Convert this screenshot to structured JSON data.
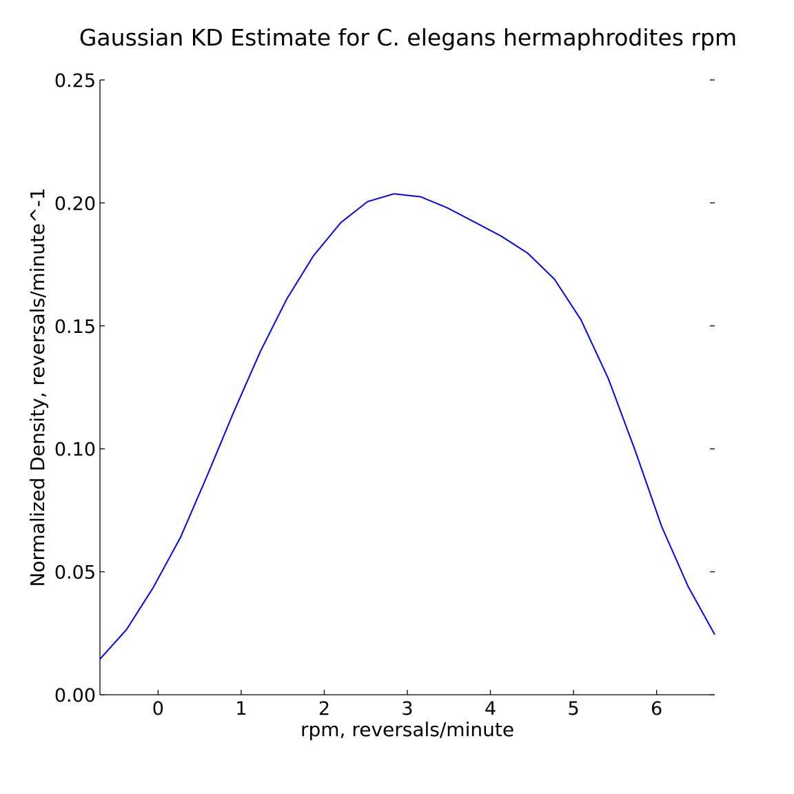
{
  "chart_data": {
    "type": "line",
    "title": "Gaussian KD Estimate for C. elegans hermaphrodites rpm",
    "xlabel": "rpm, reversals/minute",
    "ylabel": "Normalized Density, reversals/minute^-1",
    "xlim": [
      -0.7,
      6.7
    ],
    "ylim": [
      0.0,
      0.25
    ],
    "x_ticks": [
      0,
      1,
      2,
      3,
      4,
      5,
      6
    ],
    "x_tick_labels": [
      "0",
      "1",
      "2",
      "3",
      "4",
      "5",
      "6"
    ],
    "y_ticks": [
      0.0,
      0.05,
      0.1,
      0.15,
      0.2,
      0.25
    ],
    "y_tick_labels": [
      "0.00",
      "0.05",
      "0.10",
      "0.15",
      "0.20",
      "0.25"
    ],
    "grid": false,
    "line_color": "#0000ff",
    "series": [
      {
        "x": [
          -0.7,
          -0.38,
          -0.06,
          0.27,
          0.59,
          0.91,
          1.23,
          1.55,
          1.87,
          2.2,
          2.52,
          2.84,
          3.16,
          3.48,
          3.81,
          4.13,
          4.45,
          4.77,
          5.09,
          5.42,
          5.74,
          6.06,
          6.38,
          6.7
        ],
        "y": [
          0.0145,
          0.0265,
          0.0435,
          0.064,
          0.089,
          0.115,
          0.1395,
          0.161,
          0.1785,
          0.192,
          0.2005,
          0.2037,
          0.2025,
          0.198,
          0.1922,
          0.1865,
          0.1795,
          0.169,
          0.1525,
          0.1285,
          0.0995,
          0.0685,
          0.044,
          0.0245
        ]
      }
    ]
  }
}
